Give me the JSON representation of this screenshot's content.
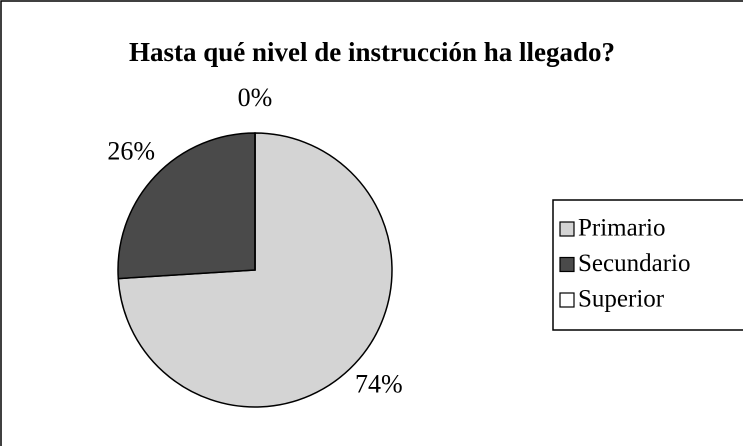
{
  "chart_data": {
    "type": "pie",
    "title": "Hasta qué nivel de instrucción ha llegado?",
    "categories": [
      "Primario",
      "Secundario",
      "Superior"
    ],
    "values": [
      74,
      26,
      0
    ],
    "value_labels": [
      "74%",
      "26%",
      "0%"
    ],
    "colors": [
      "#d4d4d4",
      "#4a4a4a",
      "#ffffff"
    ],
    "legend": "right"
  }
}
